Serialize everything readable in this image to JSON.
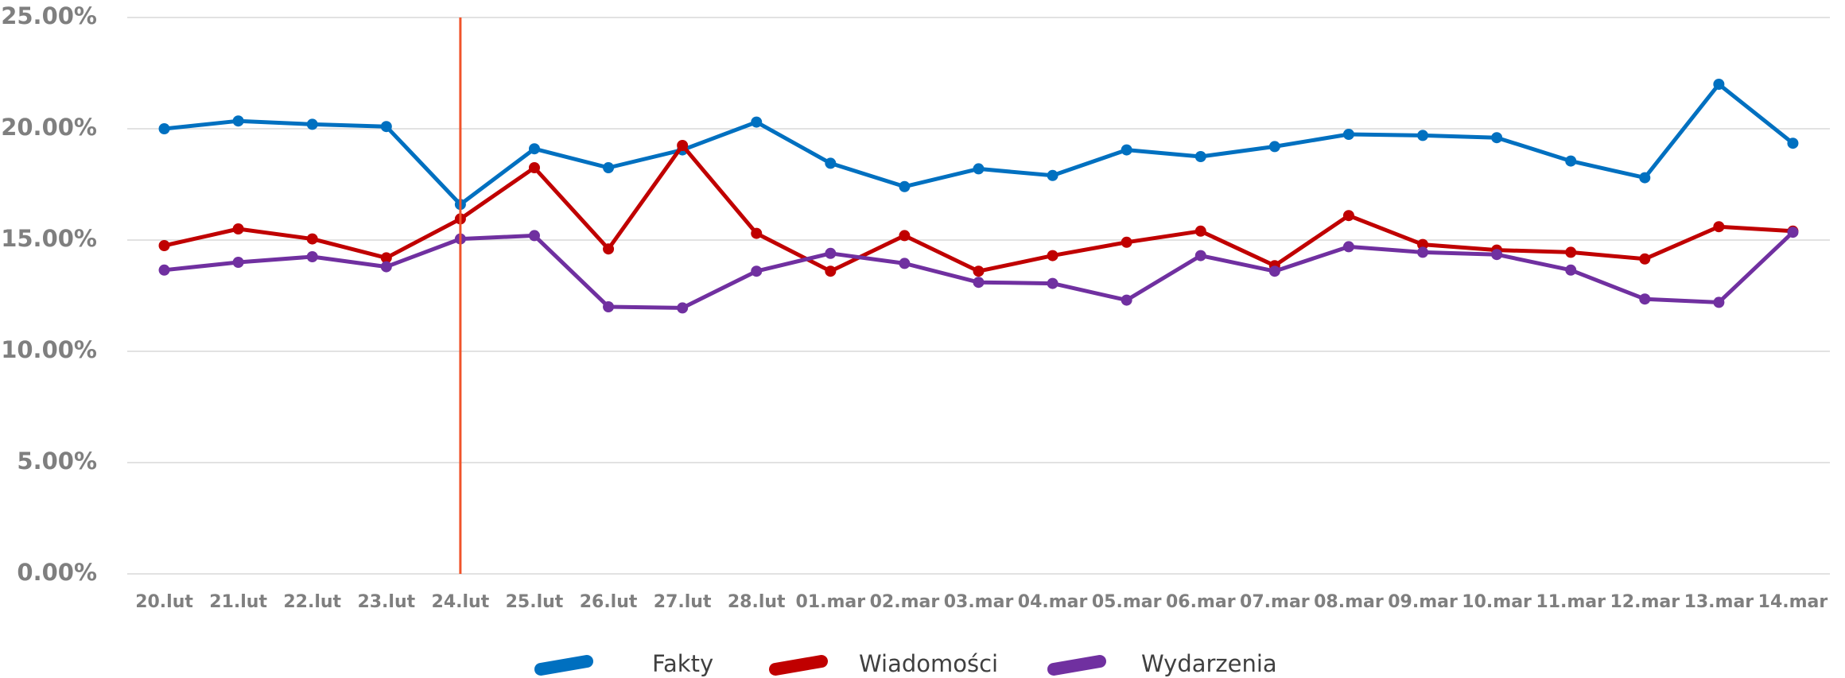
{
  "chart_data": {
    "type": "line",
    "categories": [
      "20.lut",
      "21.lut",
      "22.lut",
      "23.lut",
      "24.lut",
      "25.lut",
      "26.lut",
      "27.lut",
      "28.lut",
      "01.mar",
      "02.mar",
      "03.mar",
      "04.mar",
      "05.mar",
      "06.mar",
      "07.mar",
      "08.mar",
      "09.mar",
      "10.mar",
      "11.mar",
      "12.mar",
      "13.mar",
      "14.mar"
    ],
    "series": [
      {
        "name": "Fakty",
        "color": "#0070c0",
        "values": [
          20.0,
          20.35,
          20.2,
          20.1,
          16.6,
          19.1,
          18.25,
          19.05,
          20.3,
          18.45,
          17.4,
          18.2,
          17.9,
          19.05,
          18.75,
          19.2,
          19.75,
          19.7,
          19.6,
          18.55,
          17.8,
          22.0,
          19.35
        ]
      },
      {
        "name": "Wiadomości",
        "color": "#c00000",
        "values": [
          14.75,
          15.5,
          15.05,
          14.2,
          15.95,
          18.25,
          14.6,
          19.25,
          15.3,
          13.6,
          15.2,
          13.6,
          14.3,
          14.9,
          15.4,
          13.85,
          16.1,
          14.8,
          14.55,
          14.45,
          14.15,
          15.6,
          15.4
        ]
      },
      {
        "name": "Wydarzenia",
        "color": "#7030a0",
        "values": [
          13.65,
          14.0,
          14.25,
          13.8,
          15.05,
          15.2,
          12.0,
          11.95,
          13.6,
          14.4,
          13.95,
          13.1,
          13.05,
          12.3,
          14.3,
          13.6,
          14.7,
          14.45,
          14.35,
          13.65,
          12.35,
          12.2,
          15.35
        ]
      }
    ],
    "ylim": [
      0,
      25
    ],
    "yticks": [
      {
        "value": 0,
        "label": "0.00%"
      },
      {
        "value": 5,
        "label": "5.00%"
      },
      {
        "value": 10,
        "label": "10.00%"
      },
      {
        "value": 15,
        "label": "15.00%"
      },
      {
        "value": 20,
        "label": "20.00%"
      },
      {
        "value": 25,
        "label": "25.00%"
      }
    ],
    "grid": true
  }
}
